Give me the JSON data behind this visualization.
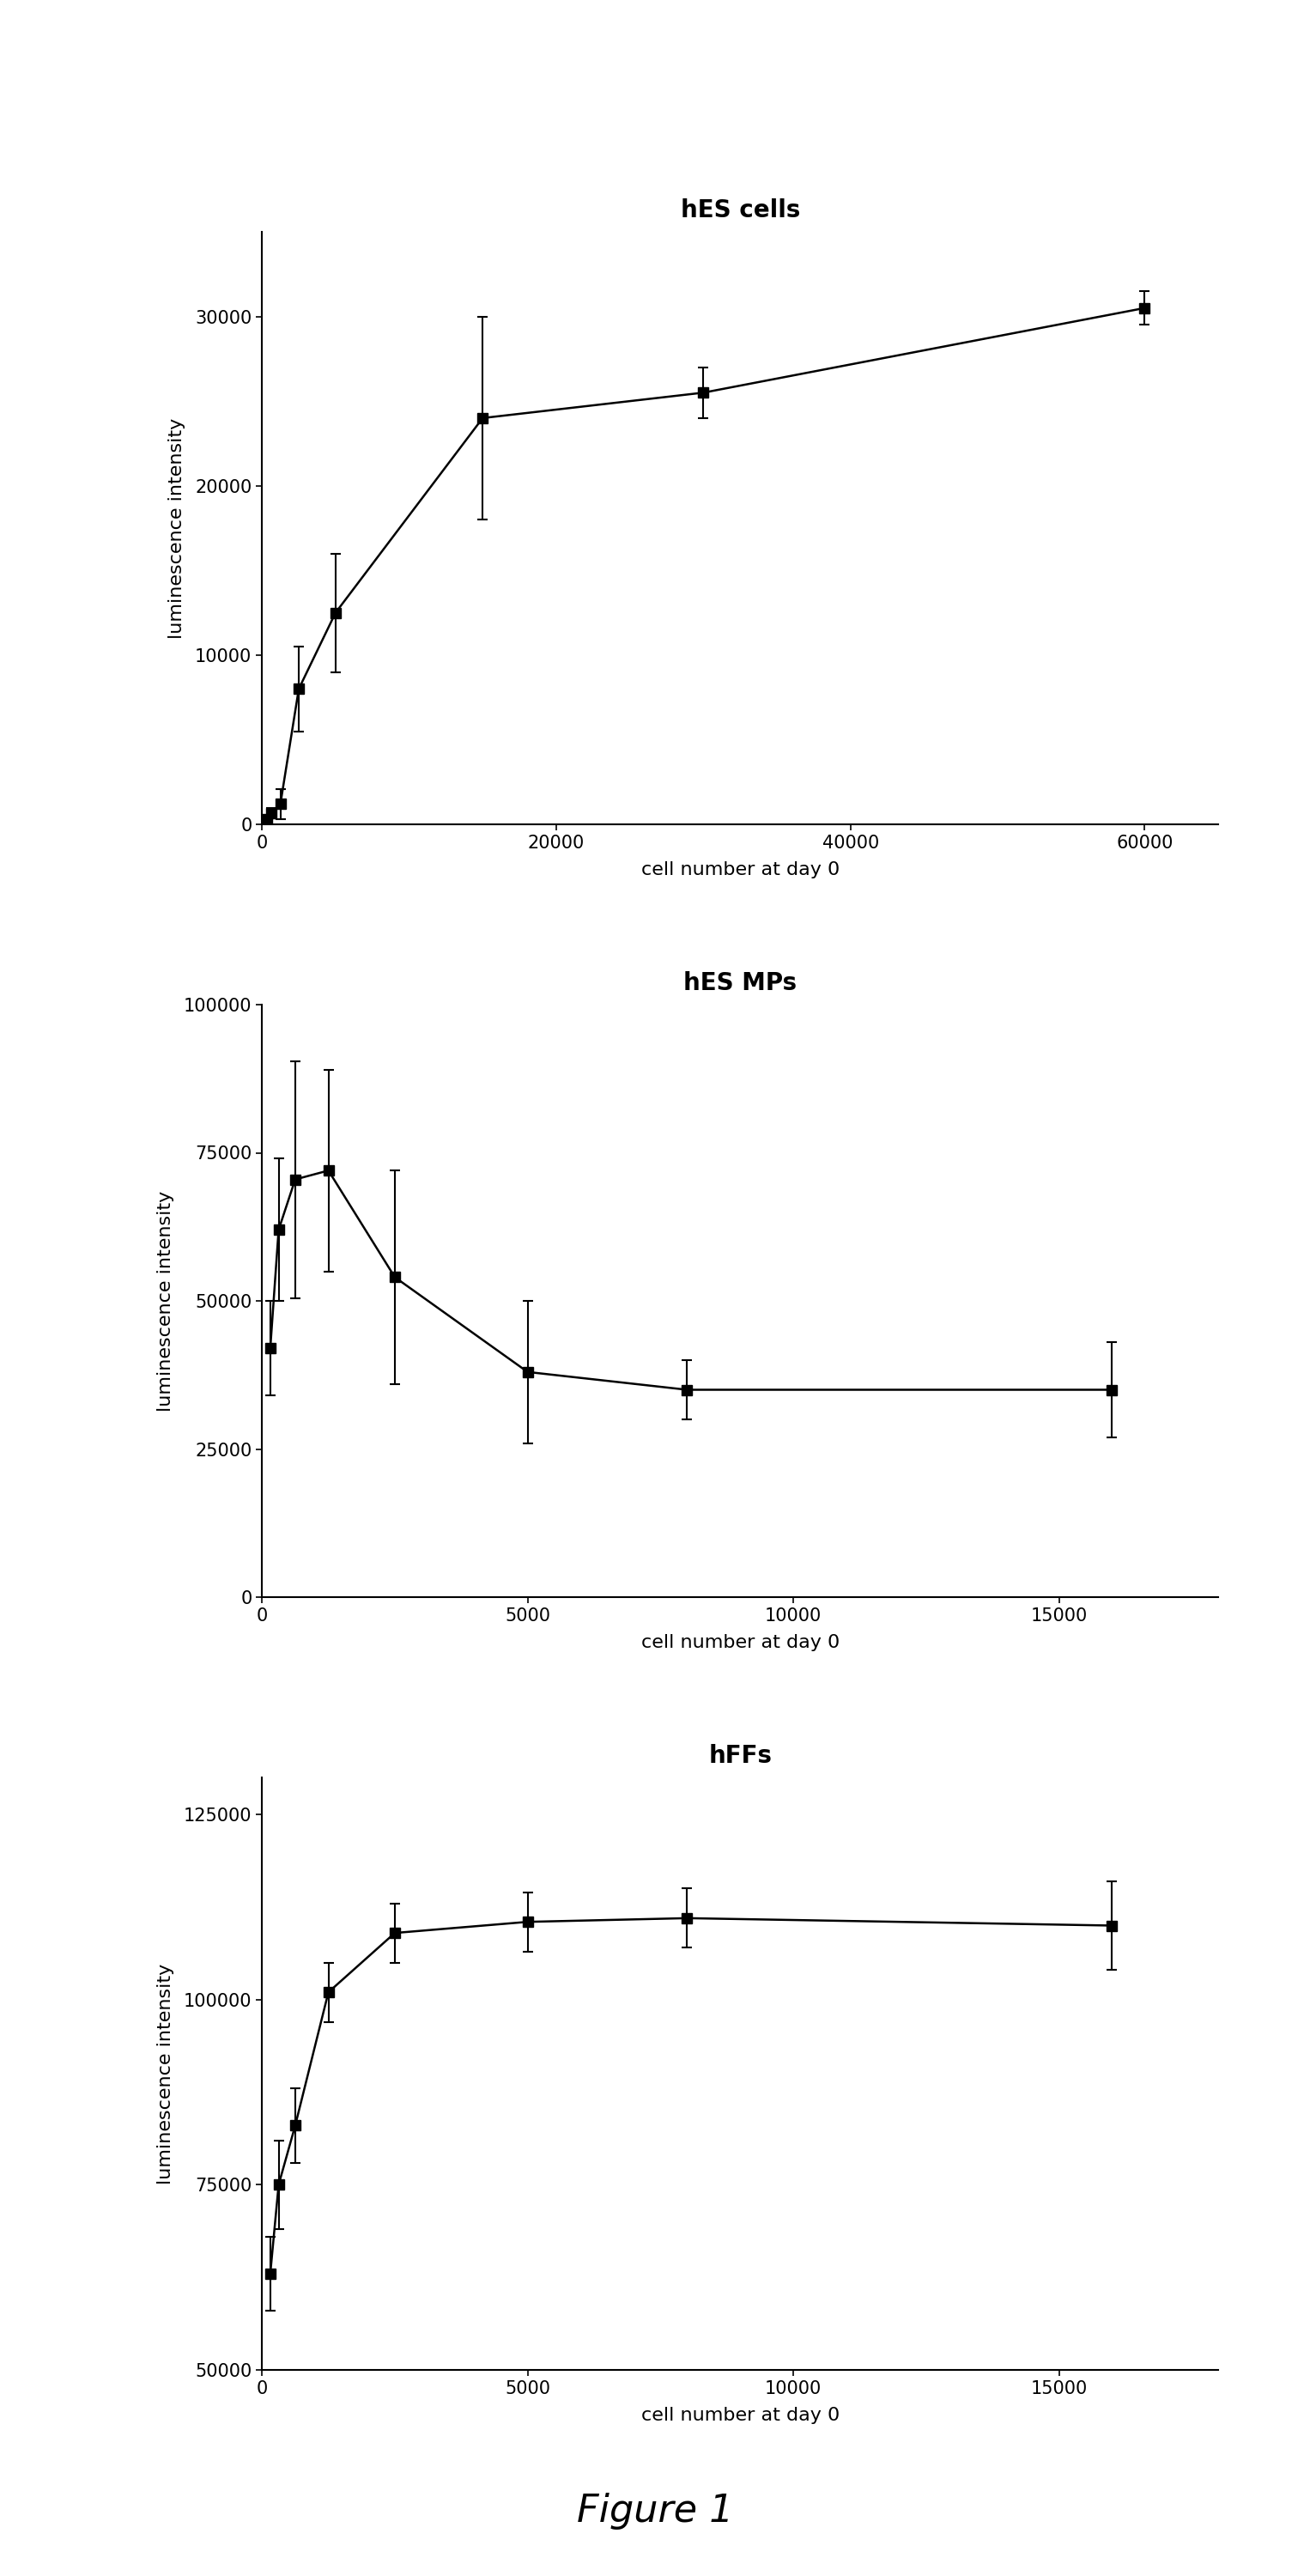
{
  "chart1": {
    "title": "hES cells",
    "x": [
      156,
      313,
      625,
      1250,
      2500,
      5000,
      15000,
      30000,
      60000
    ],
    "y": [
      150,
      280,
      680,
      1200,
      8000,
      12500,
      24000,
      25500,
      30500
    ],
    "yerr": [
      80,
      150,
      300,
      900,
      2500,
      3500,
      6000,
      1500,
      1000
    ],
    "xlim": [
      0,
      65000
    ],
    "ylim": [
      0,
      35000
    ],
    "xticks": [
      0,
      20000,
      40000,
      60000
    ],
    "yticks": [
      0,
      10000,
      20000,
      30000
    ],
    "xlabel": "cell number at day 0",
    "ylabel": "luminescence intensity"
  },
  "chart2": {
    "title": "hES MPs",
    "x": [
      156,
      313,
      625,
      1250,
      2500,
      5000,
      8000,
      16000
    ],
    "y": [
      42000,
      62000,
      70500,
      72000,
      54000,
      38000,
      35000,
      35000
    ],
    "yerr": [
      8000,
      12000,
      20000,
      17000,
      18000,
      12000,
      5000,
      8000
    ],
    "xlim": [
      0,
      18000
    ],
    "ylim": [
      0,
      100000
    ],
    "xticks": [
      0,
      5000,
      10000,
      15000
    ],
    "yticks": [
      0,
      25000,
      50000,
      75000,
      100000
    ],
    "xlabel": "cell number at day 0",
    "ylabel": "luminescence intensity"
  },
  "chart3": {
    "title": "hFFs",
    "x": [
      156,
      313,
      625,
      1250,
      2500,
      5000,
      8000,
      16000
    ],
    "y": [
      63000,
      75000,
      83000,
      101000,
      109000,
      110500,
      111000,
      110000
    ],
    "yerr": [
      5000,
      6000,
      5000,
      4000,
      4000,
      4000,
      4000,
      6000
    ],
    "xlim": [
      0,
      18000
    ],
    "ylim": [
      50000,
      130000
    ],
    "xticks": [
      0,
      5000,
      10000,
      15000
    ],
    "yticks": [
      50000,
      75000,
      100000,
      125000
    ],
    "xlabel": "cell number at day 0",
    "ylabel": "luminescence intensity"
  },
  "figure_label": "Figure 1",
  "line_color": "#000000",
  "marker": "s",
  "marker_size": 8,
  "line_width": 1.8,
  "capsize": 4,
  "elinewidth": 1.5,
  "title_fontsize": 20,
  "label_fontsize": 16,
  "tick_fontsize": 15,
  "figure_label_fontsize": 32,
  "background_color": "#ffffff"
}
